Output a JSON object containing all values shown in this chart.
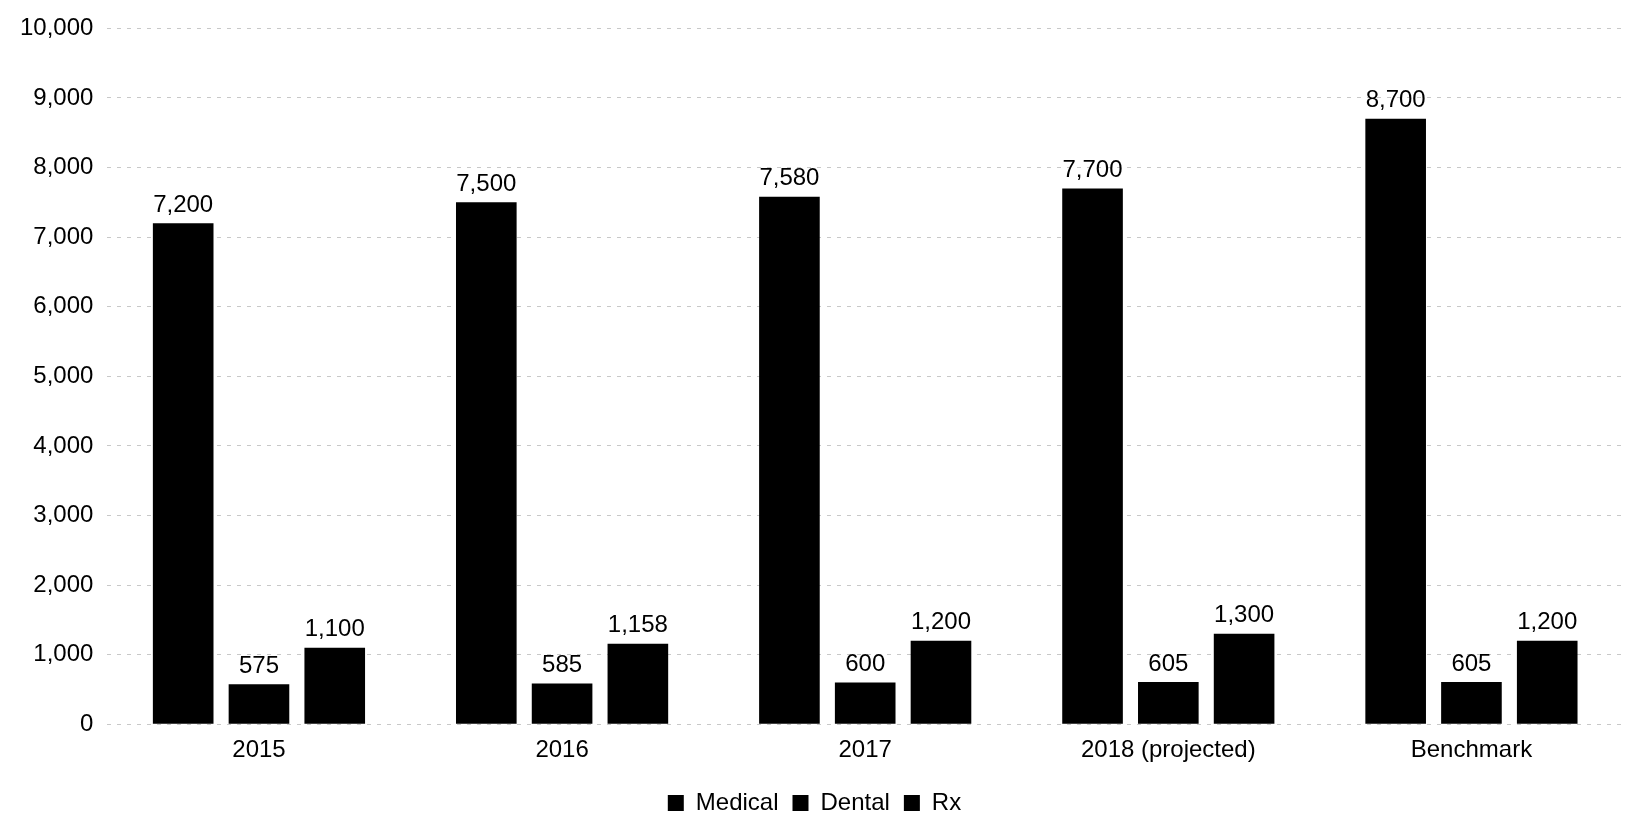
{
  "chart_data": {
    "type": "bar",
    "categories": [
      "2015",
      "2016",
      "2017",
      "2018 (projected)",
      "Benchmark"
    ],
    "series": [
      {
        "name": "Medical",
        "color": "#000000",
        "values": [
          7200,
          7500,
          7580,
          7700,
          8700
        ],
        "value_labels": [
          "7,200",
          "7,500",
          "7,580",
          "7,700",
          "8,700"
        ]
      },
      {
        "name": "Dental",
        "color": "#000000",
        "values": [
          575,
          585,
          600,
          605,
          605
        ],
        "value_labels": [
          "575",
          "585",
          "600",
          "605",
          "605"
        ]
      },
      {
        "name": "Rx",
        "color": "#000000",
        "values": [
          1100,
          1158,
          1200,
          1300,
          1200
        ],
        "value_labels": [
          "1,100",
          "1,158",
          "1,200",
          "1,300",
          "1,200"
        ]
      }
    ],
    "ylim": [
      0,
      10000
    ],
    "yticks": [
      0,
      {
        "value": 1000,
        "label": "1,000"
      },
      {
        "value": 2000,
        "label": "2,000"
      },
      {
        "value": 3000,
        "label": "3,000"
      },
      {
        "value": 4000,
        "label": "4,000"
      },
      {
        "value": 5000,
        "label": "5,000"
      },
      {
        "value": 6000,
        "label": "6,000"
      },
      {
        "value": 7000,
        "label": "7,000"
      },
      {
        "value": 8000,
        "label": "8,000"
      },
      {
        "value": 9000,
        "label": "9,000"
      },
      {
        "value": 10000,
        "label": "10,000"
      }
    ],
    "grid": "y",
    "legend": "bottom"
  }
}
